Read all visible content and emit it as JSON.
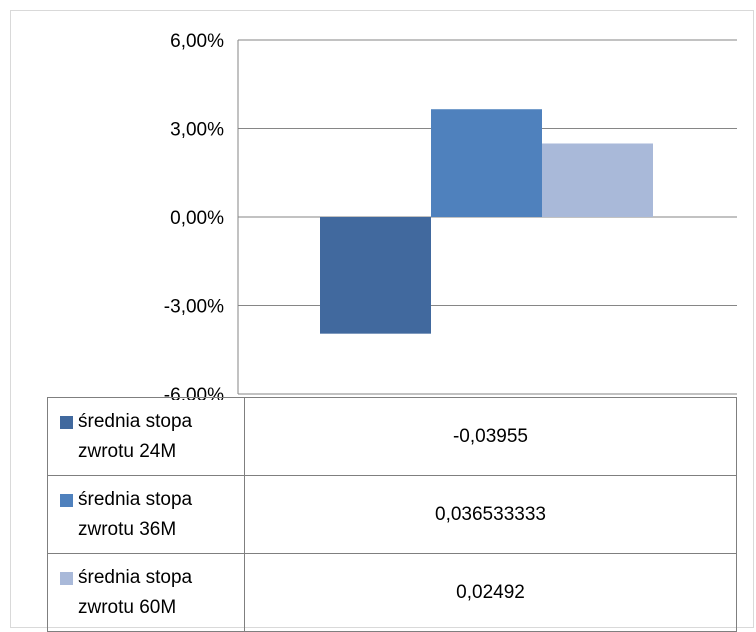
{
  "chart_data": {
    "type": "bar",
    "categories": [
      ""
    ],
    "series": [
      {
        "name": "średnia stopa zwrotu 24M",
        "values": [
          -0.03955
        ],
        "value_label": "-0,03955",
        "color": "#41699e"
      },
      {
        "name": "średnia stopa zwrotu 36M",
        "values": [
          0.036533333
        ],
        "value_label": "0,036533333",
        "color": "#4f81bd"
      },
      {
        "name": "średnia stopa zwrotu 60M",
        "values": [
          0.02492
        ],
        "value_label": "0,02492",
        "color": "#a9b9d9"
      }
    ],
    "ylim": [
      -0.06,
      0.06
    ],
    "yticks": [
      0.06,
      0.03,
      0.0,
      -0.03,
      -0.06
    ],
    "ytick_labels": [
      "6,00%",
      "3,00%",
      "0,00%",
      "-3,00%",
      "-6,00%"
    ],
    "grid": true,
    "legend": "data-table-below",
    "title": "",
    "xlabel": "",
    "ylabel": ""
  }
}
